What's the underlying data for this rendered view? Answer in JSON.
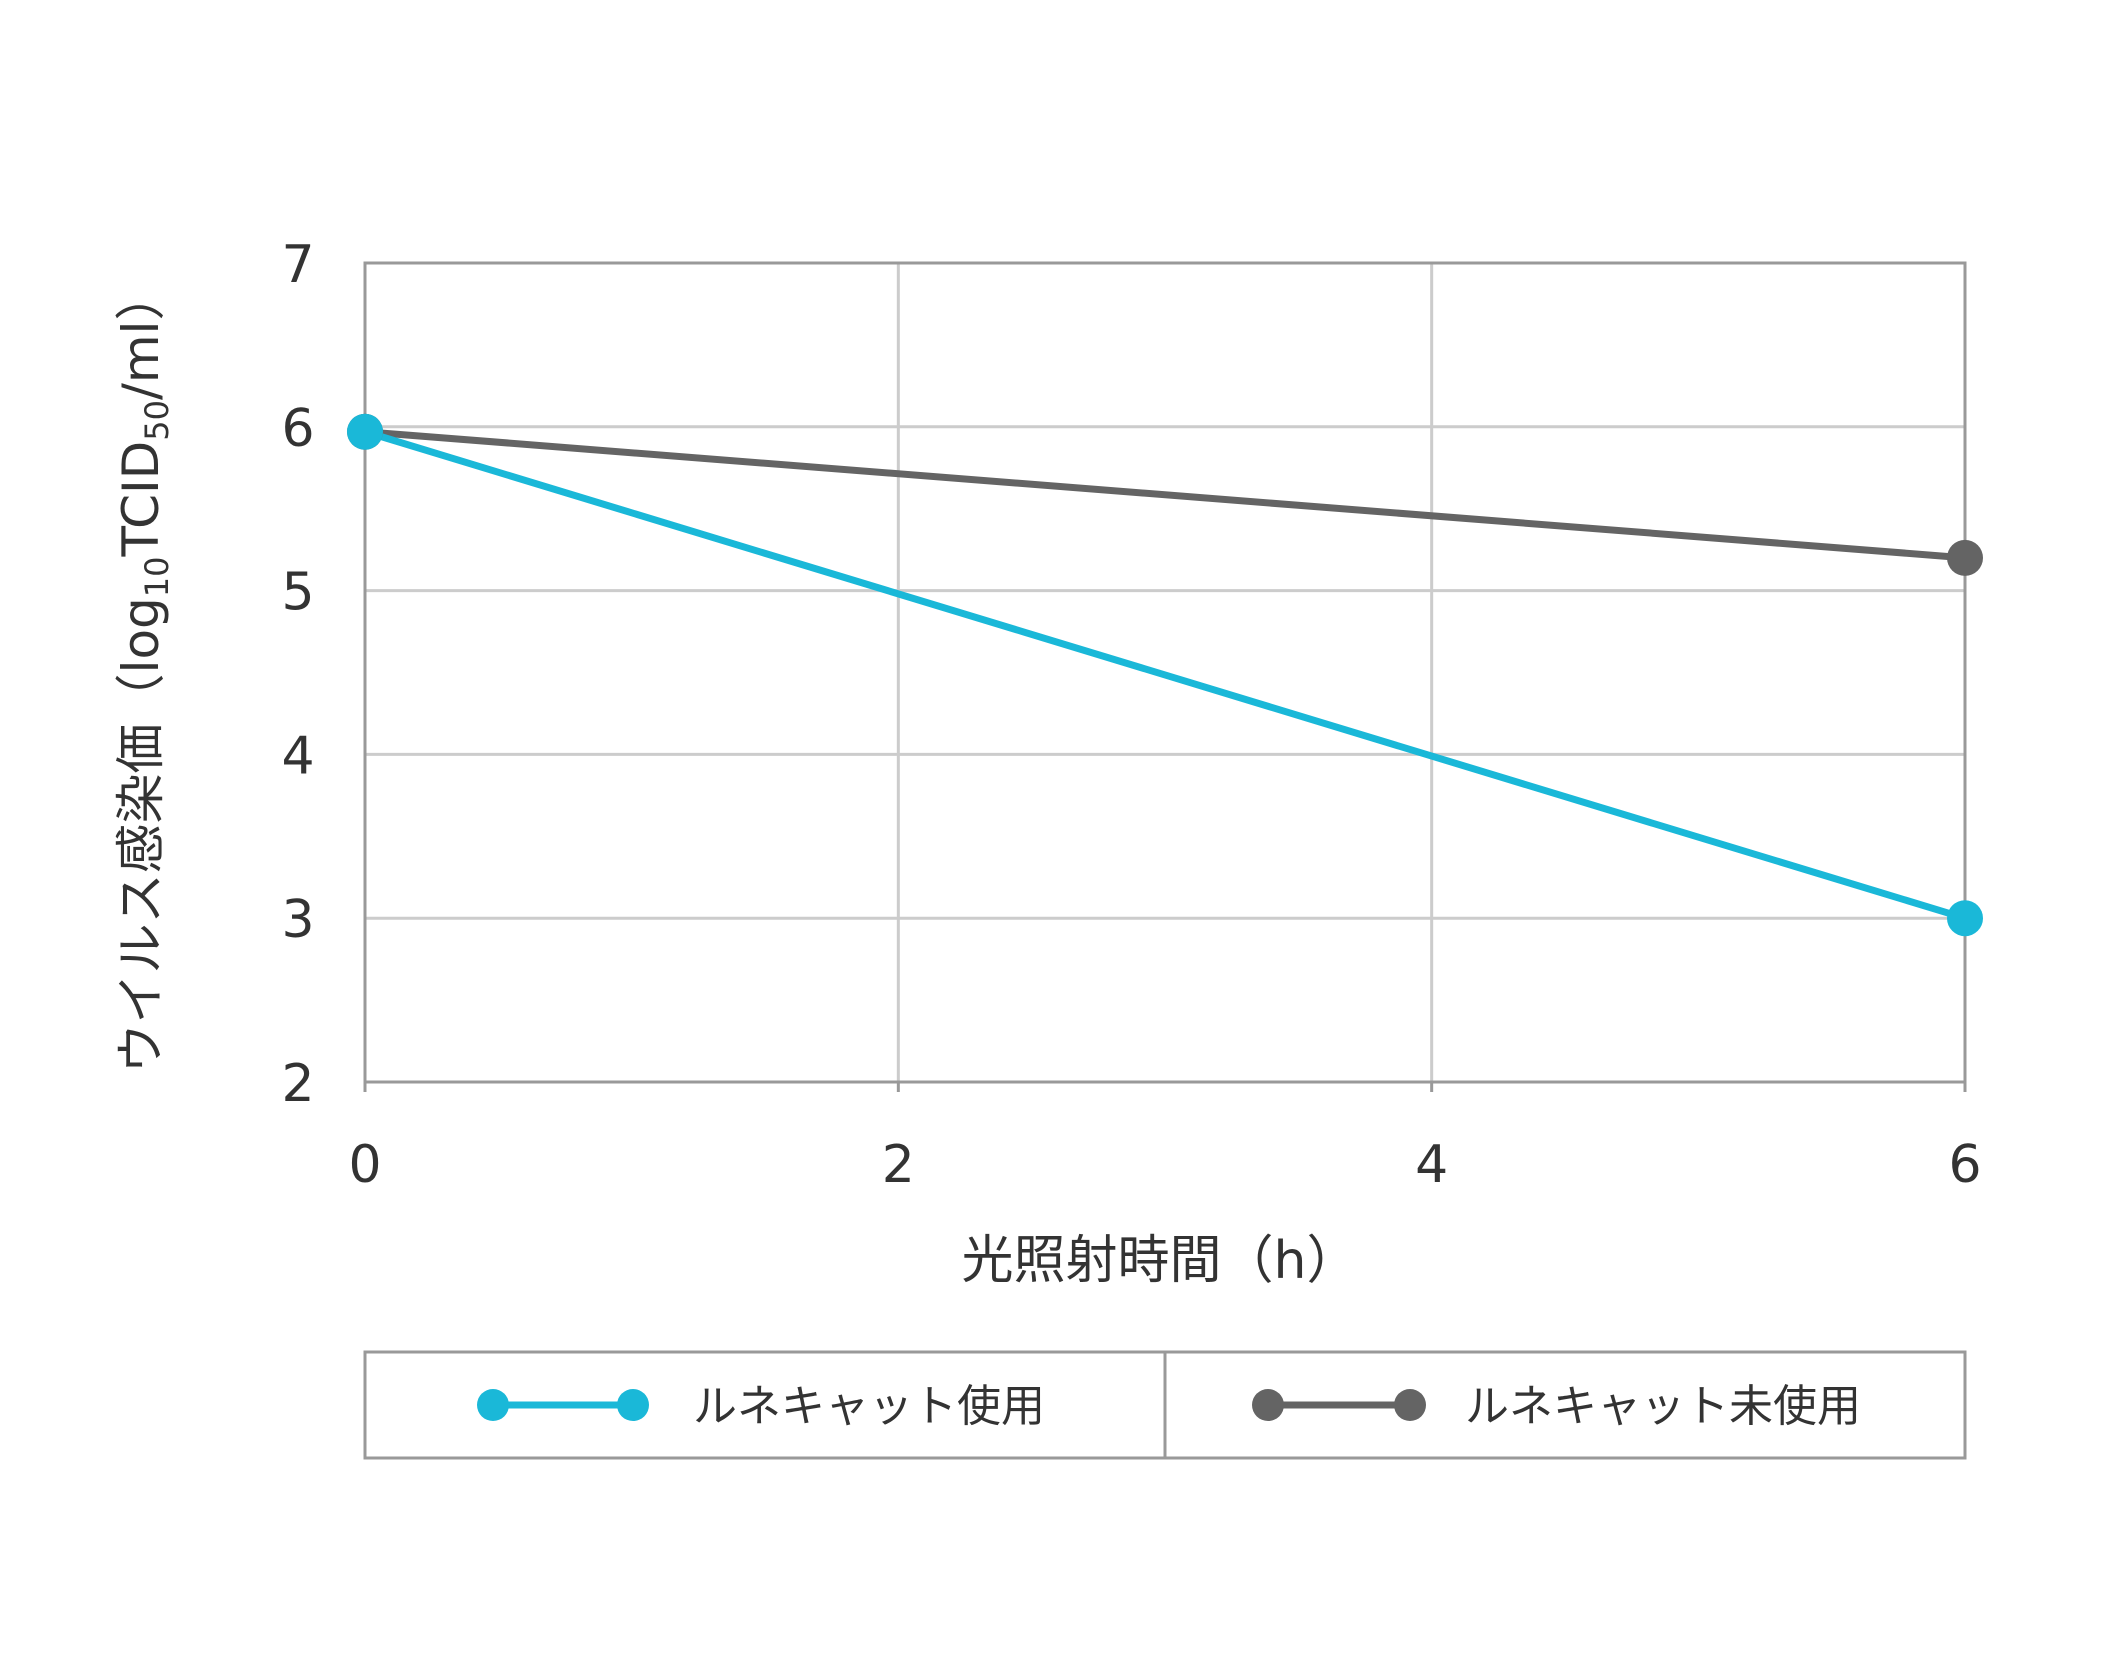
{
  "colors": {
    "series_used": "#1ab8d8",
    "series_unused": "#646464",
    "grid": "#cccccc",
    "frame": "#999999",
    "text": "#333333"
  },
  "chart_data": {
    "type": "line",
    "xlabel": "光照射時間（h）",
    "ylabel_main": "ウイルス感染価（log",
    "ylabel_sub1": "10",
    "ylabel_mid": "TCID",
    "ylabel_sub2": "50",
    "ylabel_end": "/ml）",
    "xlim": [
      0,
      6
    ],
    "ylim": [
      2,
      7
    ],
    "x_ticks": [
      0,
      2,
      4,
      6
    ],
    "y_ticks": [
      2,
      3,
      4,
      5,
      6,
      7
    ],
    "grid": true,
    "legend_position": "bottom",
    "series": [
      {
        "name": "ルネキャット使用",
        "x": [
          0,
          6
        ],
        "y": [
          5.97,
          3.0
        ],
        "color": "#1ab8d8"
      },
      {
        "name": "ルネキャット未使用",
        "x": [
          0,
          6
        ],
        "y": [
          5.97,
          5.2
        ],
        "color": "#646464"
      }
    ]
  }
}
